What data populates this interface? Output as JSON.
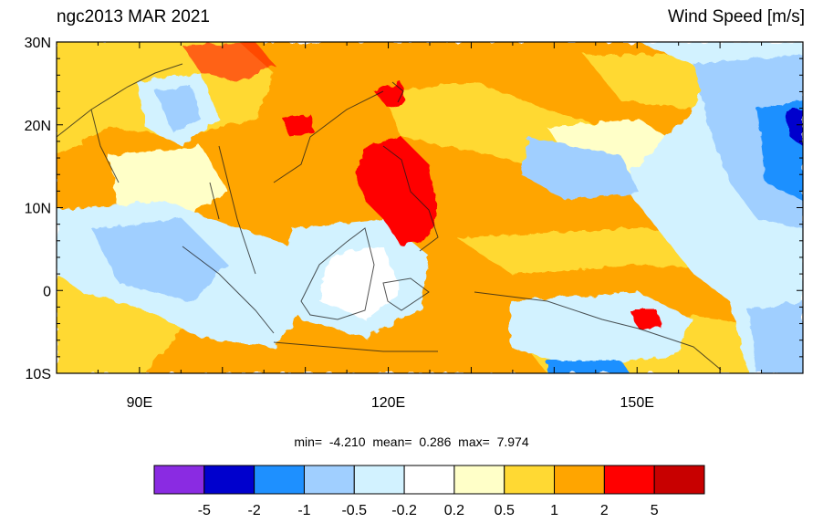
{
  "title_left": "ngc2013 MAR 2021",
  "title_right": "Wind Speed [m/s]",
  "lat_labels": [
    {
      "lat": 30,
      "text": "30N"
    },
    {
      "lat": 20,
      "text": "20N"
    },
    {
      "lat": 10,
      "text": "10N"
    },
    {
      "lat": 0,
      "text": "0"
    },
    {
      "lat": -10,
      "text": "10S"
    }
  ],
  "lon_labels": [
    {
      "lon": 90,
      "text": "90E"
    },
    {
      "lon": 120,
      "text": "120E"
    },
    {
      "lon": 150,
      "text": "150E"
    }
  ],
  "stats": {
    "min_label": "min=",
    "min_value": "-4.210",
    "mean_label": "mean=",
    "mean_value": "0.286",
    "max_label": "max=",
    "max_value": "7.974"
  },
  "colorbar": {
    "colors": [
      "#8a2be2",
      "#0000cd",
      "#1e90ff",
      "#a0cfff",
      "#d2f2ff",
      "#ffffff",
      "#ffffc8",
      "#ffd933",
      "#ffa500",
      "#ff0000",
      "#c80000"
    ],
    "labels": [
      "-5",
      "-2",
      "-1",
      "-0.5",
      "-0.2",
      "0.2",
      "0.5",
      "1",
      "2",
      "5"
    ]
  },
  "chart_data": {
    "type": "heatmap",
    "title": "ngc2013 MAR 2021",
    "variable": "Wind Speed [m/s]",
    "lon_range": [
      80,
      170
    ],
    "lat_range": [
      -10,
      30
    ],
    "min": -4.21,
    "mean": 0.286,
    "max": 7.974,
    "levels": [
      -5,
      -2,
      -1,
      -0.5,
      -0.2,
      0.2,
      0.5,
      1,
      2,
      5
    ]
  }
}
